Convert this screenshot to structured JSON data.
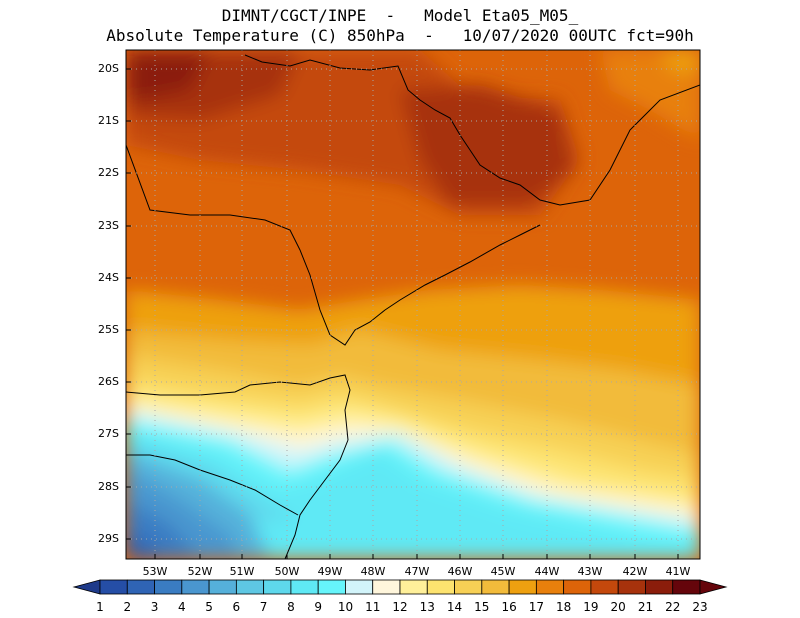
{
  "header": {
    "line1": "DIMNT/CGCT/INPE  -   Model Eta05_M05_",
    "line2": "Absolute Temperature (C) 850hPa  -   10/07/2020 00UTC fct=90h"
  },
  "axes": {
    "lat_labels": [
      "20S",
      "21S",
      "22S",
      "23S",
      "24S",
      "25S",
      "26S",
      "27S",
      "28S",
      "29S"
    ],
    "lat_values": [
      -20,
      -21,
      -22,
      -23,
      -24,
      -25,
      -26,
      -27,
      -28,
      -29
    ],
    "lon_labels": [
      "53W",
      "52W",
      "51W",
      "50W",
      "49W",
      "48W",
      "47W",
      "46W",
      "45W",
      "44W",
      "43W",
      "42W",
      "41W"
    ],
    "lon_values": [
      -53,
      -52,
      -51,
      -50,
      -49,
      -48,
      -47,
      -46,
      -45,
      -44,
      -43,
      -42,
      -41
    ],
    "lon_range": [
      -53.7,
      -40.3
    ],
    "lat_range": [
      -29.4,
      -19.8
    ]
  },
  "colorbar": {
    "labels": [
      "1",
      "2",
      "3",
      "4",
      "5",
      "6",
      "7",
      "8",
      "9",
      "10",
      "11",
      "12",
      "13",
      "14",
      "15",
      "16",
      "17",
      "18",
      "19",
      "20",
      "21",
      "22",
      "23"
    ],
    "colors": [
      "#1e3a8a",
      "#254ea6",
      "#2f64b5",
      "#3a7cc2",
      "#4a96cf",
      "#55b0da",
      "#5ec7e3",
      "#5ed8ec",
      "#5fe9f5",
      "#66f5fb",
      "#d2f4fa",
      "#fff6dc",
      "#fff09a",
      "#fde36f",
      "#f7d055",
      "#f2bb3b",
      "#eea010",
      "#e8800c",
      "#dd6409",
      "#c4480c",
      "#a7320c",
      "#8b1d0b",
      "#65050b"
    ]
  },
  "chart_data": {
    "type": "heatmap",
    "variable": "Absolute Temperature (C) 850hPa",
    "units": "C",
    "levels": [
      1,
      2,
      3,
      4,
      5,
      6,
      7,
      8,
      9,
      10,
      11,
      12,
      13,
      14,
      15,
      16,
      17,
      18,
      19,
      20,
      21,
      22,
      23
    ],
    "regions": [
      {
        "area": "northwest interior (20S-22S, 53W-49W)",
        "value": 21
      },
      {
        "area": "around 21S-23S, 46W-44W",
        "value": 21
      },
      {
        "area": "center (23S-24S, 50W-47W)",
        "value": 19
      },
      {
        "area": "northeast coast (20S, 41W)",
        "value": 16
      },
      {
        "area": "around 25S",
        "value": 16
      },
      {
        "area": "around 26S-27S",
        "value": 13
      },
      {
        "area": "southwest (28S-29S, 53W-50W)",
        "value": 6
      },
      {
        "area": "offshore south (28S-29S, 48W-45W)",
        "value": 9
      }
    ]
  }
}
